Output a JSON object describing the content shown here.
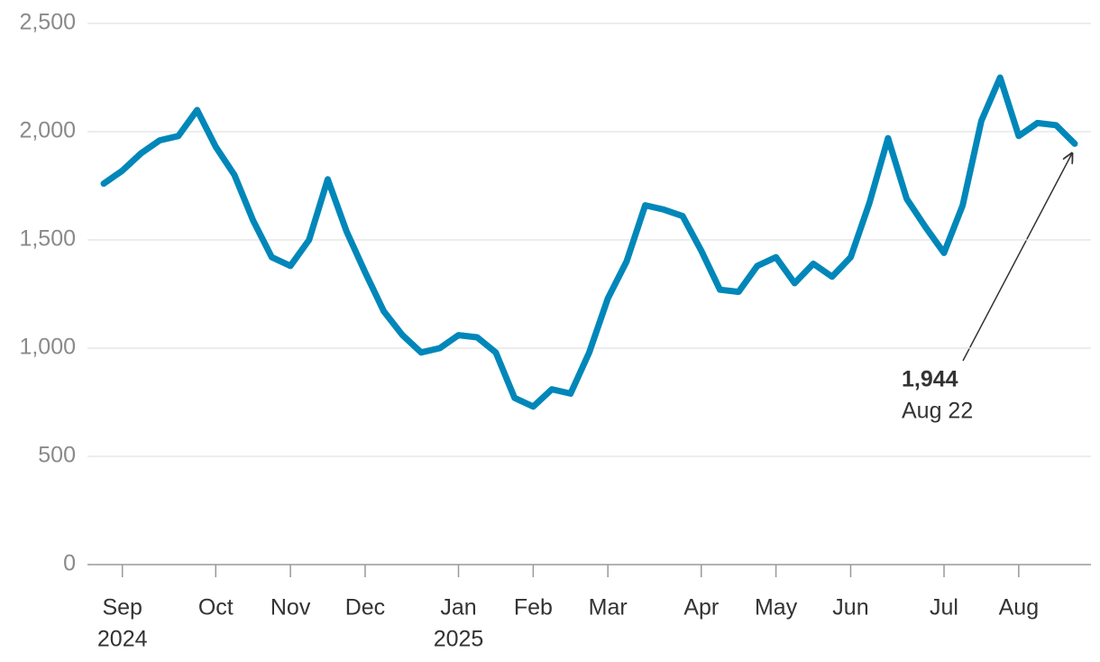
{
  "chart_data": {
    "type": "line",
    "categories": [
      null,
      "Sep",
      null,
      null,
      null,
      null,
      "Oct",
      null,
      null,
      null,
      "Nov",
      null,
      null,
      null,
      "Dec",
      null,
      null,
      null,
      null,
      "Jan",
      null,
      null,
      null,
      "Feb",
      null,
      null,
      null,
      "Mar",
      null,
      null,
      null,
      null,
      "Apr",
      null,
      null,
      null,
      "May",
      null,
      null,
      null,
      "Jun",
      null,
      null,
      null,
      null,
      "Jul",
      null,
      null,
      null,
      "Aug",
      null,
      null,
      null
    ],
    "year_labels": [
      null,
      "2024",
      null,
      null,
      null,
      null,
      null,
      null,
      null,
      null,
      null,
      null,
      null,
      null,
      null,
      null,
      null,
      null,
      null,
      "2025",
      null,
      null,
      null,
      null,
      null,
      null,
      null,
      null,
      null,
      null,
      null,
      null,
      null,
      null,
      null,
      null,
      null,
      null,
      null,
      null,
      null,
      null,
      null,
      null,
      null,
      null,
      null,
      null,
      null,
      null,
      null,
      null,
      null
    ],
    "series": [
      {
        "color": "#0087b9",
        "values": [
          1760,
          1820,
          1900,
          1960,
          1980,
          2100,
          1930,
          1800,
          1590,
          1420,
          1380,
          1500,
          1780,
          1540,
          1350,
          1170,
          1060,
          980,
          1000,
          1060,
          1050,
          980,
          770,
          730,
          810,
          790,
          980,
          1230,
          1400,
          1660,
          1640,
          1610,
          1450,
          1270,
          1260,
          1380,
          1420,
          1300,
          1390,
          1330,
          1420,
          1670,
          1970,
          1690,
          1560,
          1440,
          1660,
          2050,
          2250,
          1980,
          2040,
          2030,
          1944
        ]
      }
    ],
    "ylim": [
      0,
      2500
    ],
    "yticks": [
      0,
      500,
      {
        "value": 1000,
        "label": "1,000"
      },
      {
        "value": 1500,
        "label": "1,500"
      },
      {
        "value": 2000,
        "label": "2,000"
      },
      {
        "value": 2500,
        "label": "2,500"
      }
    ],
    "grid": true,
    "annotation": {
      "value_label": "1,944",
      "label": "Aug 22"
    }
  }
}
